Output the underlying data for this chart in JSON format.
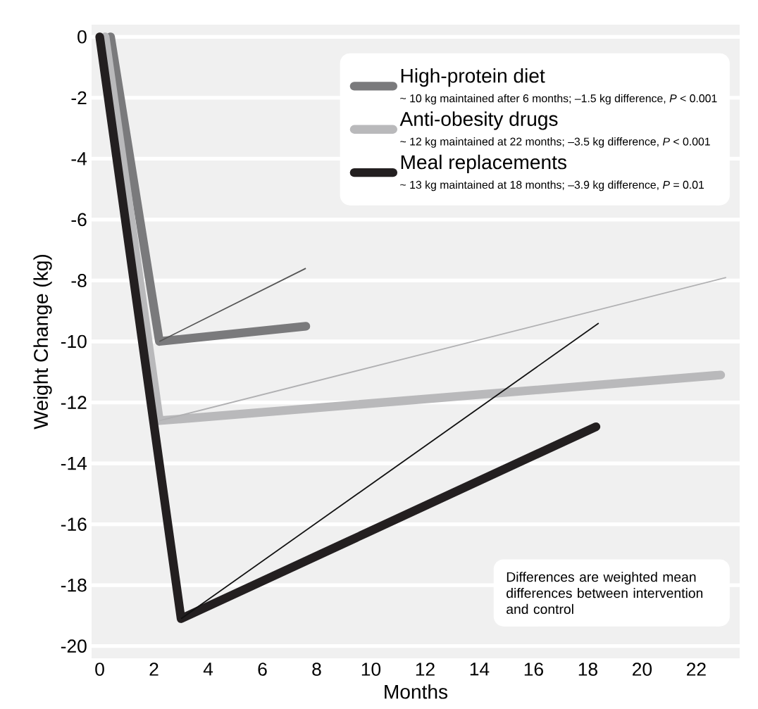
{
  "chart_data": {
    "type": "line",
    "xlabel": "Months",
    "ylabel": "Weight Change (kg)",
    "series": [
      {
        "name": "High-protein diet",
        "color": "#7a7a7c",
        "x": [
          0.4,
          2.2,
          7.6
        ],
        "values": [
          0,
          -10,
          -9.5
        ]
      },
      {
        "name": "Anti-obesity drugs",
        "color": "#b9b9bb",
        "x": [
          0.2,
          2.2,
          22.9
        ],
        "values": [
          0,
          -12.6,
          -11.1
        ]
      },
      {
        "name": "Meal replacements",
        "color": "#231f20",
        "x": [
          0,
          3,
          18.3
        ],
        "values": [
          0,
          -19.1,
          -12.8
        ]
      },
      {
        "color": "#555555",
        "x": [
          2.2,
          7.6
        ],
        "values": [
          -10,
          -7.6
        ]
      },
      {
        "color": "#b0b0b2",
        "x": [
          2.2,
          23.1
        ],
        "values": [
          -12.6,
          -7.9
        ]
      },
      {
        "color": "#111111",
        "x": [
          3,
          18.4
        ],
        "values": [
          -19.1,
          -9.4
        ]
      }
    ],
    "annotations": [
      "~ 10 kg maintained after 6 months; –1.5 kg difference, *P* < 0.001",
      "~ 12 kg maintained at 22 months; –3.5 kg difference, *P* < 0.001",
      "~ 13 kg maintained at 18 months; –3.9 kg difference, *P* = 0.01",
      "Differences are weighted mean differences between intervention and control"
    ],
    "xlim": [
      -0.3,
      23.6
    ],
    "ylim": [
      -20.4,
      0.4
    ],
    "xticks": [
      0,
      2,
      4,
      6,
      8,
      10,
      12,
      14,
      16,
      18,
      20,
      22
    ],
    "yticks": [
      0,
      -2,
      -4,
      -6,
      -8,
      -10,
      -12,
      -14,
      -16,
      -18,
      -20
    ],
    "grid": "y",
    "legend": "top right",
    "marker": "none",
    "line_style": "solid"
  }
}
